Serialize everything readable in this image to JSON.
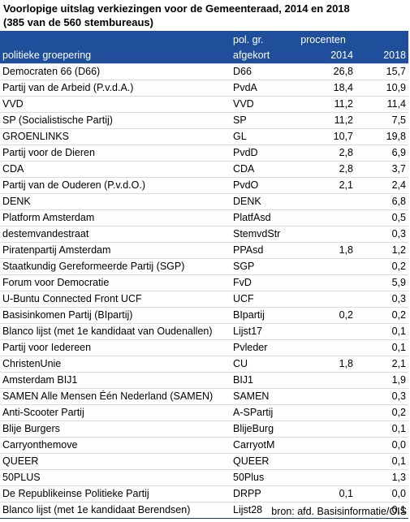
{
  "title": {
    "line1": "Voorlopige uitslag verkiezingen voor de Gemeenteraad, 2014 en 2018",
    "line2": "(385 van de 560 stembureaus)"
  },
  "header": {
    "col_party": "politieke groepering",
    "col_abbr_line1": "pol. gr.",
    "col_abbr_line2": "afgekort",
    "col_pct": "procenten",
    "col_2014": "2014",
    "col_2018": "2018"
  },
  "rows": [
    {
      "party": "Democraten 66 (D66)",
      "abbr": "D66",
      "y2014": "26,8",
      "y2018": "15,7"
    },
    {
      "party": "Partij van de Arbeid (P.v.d.A.)",
      "abbr": "PvdA",
      "y2014": "18,4",
      "y2018": "10,9"
    },
    {
      "party": "VVD",
      "abbr": "VVD",
      "y2014": "11,2",
      "y2018": "11,4"
    },
    {
      "party": "SP (Socialistische Partij)",
      "abbr": "SP",
      "y2014": "11,2",
      "y2018": "7,5"
    },
    {
      "party": "GROENLINKS",
      "abbr": "GL",
      "y2014": "10,7",
      "y2018": "19,8"
    },
    {
      "party": "Partij voor de Dieren",
      "abbr": "PvdD",
      "y2014": "2,8",
      "y2018": "6,9"
    },
    {
      "party": "CDA",
      "abbr": "CDA",
      "y2014": "2,8",
      "y2018": "3,7"
    },
    {
      "party": "Partij van de Ouderen (P.v.d.O.)",
      "abbr": "PvdO",
      "y2014": "2,1",
      "y2018": "2,4"
    },
    {
      "party": "DENK",
      "abbr": "DENK",
      "y2014": "",
      "y2018": "6,8"
    },
    {
      "party": "Platform Amsterdam",
      "abbr": "PlatfAsd",
      "y2014": "",
      "y2018": "0,5"
    },
    {
      "party": "destemvandestraat",
      "abbr": "StemvdStr",
      "y2014": "",
      "y2018": "0,3"
    },
    {
      "party": "Piratenpartij Amsterdam",
      "abbr": "PPAsd",
      "y2014": "1,8",
      "y2018": "1,2"
    },
    {
      "party": "Staatkundig Gereformeerde Partij  (SGP)",
      "abbr": "SGP",
      "y2014": "",
      "y2018": "0,2"
    },
    {
      "party": "Forum voor Democratie",
      "abbr": "FvD",
      "y2014": "",
      "y2018": "5,9"
    },
    {
      "party": "U-Buntu Connected Front UCF",
      "abbr": "UCF",
      "y2014": "",
      "y2018": "0,3"
    },
    {
      "party": "Basisinkomen Partij (BIpartij)",
      "abbr": "BIpartij",
      "y2014": "0,2",
      "y2018": "0,2"
    },
    {
      "party": "Blanco lijst (met 1e kandidaat van Oudenallen)",
      "abbr": "Lijst17",
      "y2014": "",
      "y2018": "0,1"
    },
    {
      "party": "Partij voor Iedereen",
      "abbr": "Pvleder",
      "y2014": "",
      "y2018": "0,1"
    },
    {
      "party": "ChristenUnie",
      "abbr": "CU",
      "y2014": "1,8",
      "y2018": "2,1"
    },
    {
      "party": "Amsterdam BIJ1",
      "abbr": "BIJ1",
      "y2014": "",
      "y2018": "1,9"
    },
    {
      "party": "SAMEN Alle Mensen Één Nederland (SAMEN)",
      "abbr": "SAMEN",
      "y2014": "",
      "y2018": "0,3"
    },
    {
      "party": "Anti-Scooter Partij",
      "abbr": "A-SPartij",
      "y2014": "",
      "y2018": "0,2"
    },
    {
      "party": "Blije Burgers",
      "abbr": "BlijeBurg",
      "y2014": "",
      "y2018": "0,1"
    },
    {
      "party": "Carryonthemove",
      "abbr": "CarryotM",
      "y2014": "",
      "y2018": "0,0"
    },
    {
      "party": "QUEER",
      "abbr": "QUEER",
      "y2014": "",
      "y2018": "0,1"
    },
    {
      "party": "50PLUS",
      "abbr": "50Plus",
      "y2014": "",
      "y2018": "1,3"
    },
    {
      "party": "De Republikeinse Politieke Partij",
      "abbr": "DRPP",
      "y2014": "0,1",
      "y2018": "0,0"
    },
    {
      "party": "Blanco lijst (met 1e kandidaat Berendsen)",
      "abbr": "Lijst28",
      "y2014": "",
      "y2018": "0,1"
    }
  ],
  "source": "bron: afd. Basisinformatie/OIS"
}
